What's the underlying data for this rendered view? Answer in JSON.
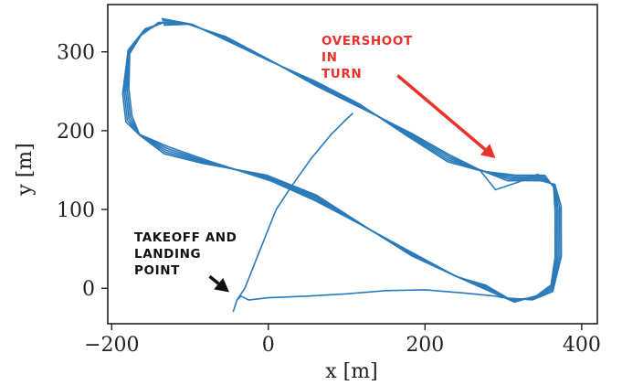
{
  "chart_data": {
    "type": "line",
    "title": "",
    "xlabel": "x [m]",
    "ylabel": "y [m]",
    "xlim": [
      -205,
      420
    ],
    "ylim": [
      -45,
      360
    ],
    "xticks": [
      {
        "value": -200,
        "label": "−200"
      },
      {
        "value": 0,
        "label": "0"
      },
      {
        "value": 200,
        "label": "200"
      },
      {
        "value": 400,
        "label": "400"
      }
    ],
    "yticks": [
      {
        "value": 0,
        "label": "0"
      },
      {
        "value": 100,
        "label": "100"
      },
      {
        "value": 200,
        "label": "200"
      },
      {
        "value": 300,
        "label": "300"
      }
    ],
    "grid": false,
    "color": "#2b7bba",
    "series": [
      {
        "loop_count": 5,
        "loop_path": [
          [
            -135,
            338
          ],
          [
            -160,
            325
          ],
          [
            -178,
            300
          ],
          [
            -182,
            250
          ],
          [
            -178,
            215
          ],
          [
            -165,
            195
          ],
          [
            -130,
            175
          ],
          [
            -80,
            160
          ],
          [
            0,
            140
          ],
          [
            60,
            115
          ],
          [
            120,
            80
          ],
          [
            180,
            45
          ],
          [
            240,
            15
          ],
          [
            280,
            0
          ],
          [
            310,
            -15
          ],
          [
            340,
            -12
          ],
          [
            362,
            0
          ],
          [
            370,
            40
          ],
          [
            370,
            100
          ],
          [
            365,
            130
          ],
          [
            350,
            140
          ],
          [
            310,
            140
          ],
          [
            270,
            150
          ],
          [
            230,
            165
          ],
          [
            180,
            195
          ],
          [
            120,
            230
          ],
          [
            60,
            260
          ],
          [
            0,
            290
          ],
          [
            -50,
            315
          ],
          [
            -100,
            335
          ],
          [
            -135,
            338
          ]
        ],
        "overshoot_variant": [
          [
            270,
            150
          ],
          [
            290,
            125
          ],
          [
            320,
            135
          ],
          [
            345,
            145
          ]
        ]
      },
      {
        "ground_path": [
          [
            -45,
            -30
          ],
          [
            -40,
            -15
          ],
          [
            -35,
            -10
          ],
          [
            -25,
            -15
          ],
          [
            0,
            -12
          ],
          [
            50,
            -10
          ],
          [
            100,
            -7
          ],
          [
            150,
            -3
          ],
          [
            200,
            -2
          ],
          [
            250,
            -6
          ],
          [
            290,
            -10
          ],
          [
            300,
            -12
          ]
        ]
      },
      {
        "climb_path": [
          [
            -40,
            -15
          ],
          [
            -30,
            0
          ],
          [
            -10,
            50
          ],
          [
            10,
            100
          ],
          [
            30,
            130
          ],
          [
            55,
            165
          ],
          [
            80,
            195
          ],
          [
            100,
            215
          ],
          [
            108,
            222
          ]
        ]
      }
    ],
    "annotations": [
      {
        "text_lines": [
          "OVERSHOOT",
          "IN",
          "TURN"
        ],
        "color": "#e8322a",
        "arrow_tail": [
          165,
          270
        ],
        "arrow_head": [
          290,
          165
        ]
      },
      {
        "text_lines": [
          "TAKEOFF AND",
          "LANDING",
          "POINT"
        ],
        "color": "#111111",
        "arrow_tail": [
          -75,
          15
        ],
        "arrow_head": [
          -50,
          -5
        ]
      }
    ]
  }
}
